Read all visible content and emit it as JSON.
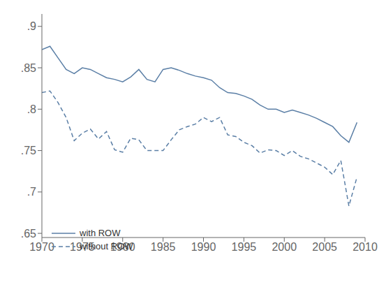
{
  "chart_data": {
    "type": "line",
    "x": [
      1970,
      1971,
      1972,
      1973,
      1974,
      1975,
      1976,
      1977,
      1978,
      1979,
      1980,
      1981,
      1982,
      1983,
      1984,
      1985,
      1986,
      1987,
      1988,
      1989,
      1990,
      1991,
      1992,
      1993,
      1994,
      1995,
      1996,
      1997,
      1998,
      1999,
      2000,
      2001,
      2002,
      2003,
      2004,
      2005,
      2006,
      2007,
      2008,
      2009
    ],
    "series": [
      {
        "name": "with ROW",
        "color": "#5b7fa6",
        "line_style": "solid",
        "values": [
          0.872,
          0.876,
          0.862,
          0.848,
          0.843,
          0.85,
          0.848,
          0.843,
          0.838,
          0.836,
          0.833,
          0.839,
          0.848,
          0.836,
          0.833,
          0.848,
          0.85,
          0.847,
          0.843,
          0.84,
          0.838,
          0.835,
          0.826,
          0.82,
          0.819,
          0.816,
          0.812,
          0.805,
          0.8,
          0.8,
          0.796,
          0.799,
          0.796,
          0.793,
          0.789,
          0.784,
          0.779,
          0.768,
          0.76,
          0.784
        ]
      },
      {
        "name": "without ROW",
        "color": "#5b7fa6",
        "line_style": "dashed",
        "values": [
          0.82,
          0.822,
          0.808,
          0.79,
          0.762,
          0.771,
          0.776,
          0.764,
          0.773,
          0.751,
          0.748,
          0.765,
          0.763,
          0.75,
          0.75,
          0.75,
          0.763,
          0.775,
          0.779,
          0.782,
          0.79,
          0.785,
          0.79,
          0.769,
          0.767,
          0.76,
          0.756,
          0.747,
          0.751,
          0.75,
          0.744,
          0.75,
          0.743,
          0.74,
          0.735,
          0.73,
          0.721,
          0.738,
          0.683,
          0.718
        ]
      }
    ],
    "xlim": [
      1970,
      2010
    ],
    "xticks": [
      1970,
      1975,
      1980,
      1985,
      1990,
      1995,
      2000,
      2005,
      2010
    ],
    "ylim": [
      0.645,
      0.915
    ],
    "yticks": [
      {
        "value": 0.65,
        "label": ".65"
      },
      {
        "value": 0.7,
        "label": ".7"
      },
      {
        "value": 0.75,
        "label": ".75"
      },
      {
        "value": 0.8,
        "label": ".8"
      },
      {
        "value": 0.85,
        "label": ".85"
      },
      {
        "value": 0.9,
        "label": ".9"
      }
    ],
    "grid": false,
    "legend": "lower left"
  }
}
